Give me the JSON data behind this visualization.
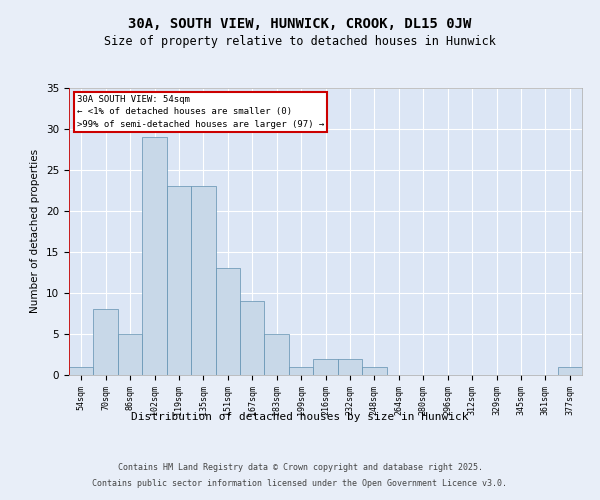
{
  "title": "30A, SOUTH VIEW, HUNWICK, CROOK, DL15 0JW",
  "subtitle": "Size of property relative to detached houses in Hunwick",
  "xlabel": "Distribution of detached houses by size in Hunwick",
  "ylabel": "Number of detached properties",
  "bar_color": "#c8d8e8",
  "bar_edge_color": "#6090b0",
  "highlight_color": "#cc0000",
  "background_color": "#e8eef8",
  "plot_bg_color": "#dce6f5",
  "grid_color": "#ffffff",
  "categories": [
    "54sqm",
    "70sqm",
    "86sqm",
    "102sqm",
    "119sqm",
    "135sqm",
    "151sqm",
    "167sqm",
    "183sqm",
    "199sqm",
    "216sqm",
    "232sqm",
    "248sqm",
    "264sqm",
    "280sqm",
    "296sqm",
    "312sqm",
    "329sqm",
    "345sqm",
    "361sqm",
    "377sqm"
  ],
  "values": [
    1,
    8,
    5,
    29,
    23,
    23,
    13,
    9,
    5,
    1,
    2,
    2,
    1,
    0,
    0,
    0,
    0,
    0,
    0,
    0,
    1
  ],
  "highlight_index": 0,
  "annotation_title": "30A SOUTH VIEW: 54sqm",
  "annotation_line1": "← <1% of detached houses are smaller (0)",
  "annotation_line2": ">99% of semi-detached houses are larger (97) →",
  "ylim": [
    0,
    35
  ],
  "yticks": [
    0,
    5,
    10,
    15,
    20,
    25,
    30,
    35
  ],
  "footer_line1": "Contains HM Land Registry data © Crown copyright and database right 2025.",
  "footer_line2": "Contains public sector information licensed under the Open Government Licence v3.0."
}
